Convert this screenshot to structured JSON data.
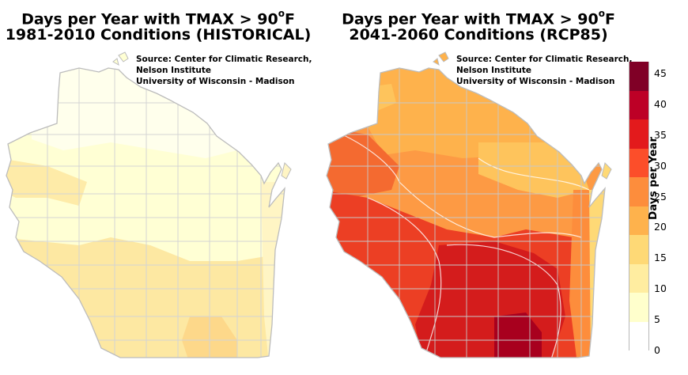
{
  "left_map": {
    "title_line1": "Days per Year with TMAX > 90",
    "title_deg": "o",
    "title_unit": "F",
    "title_line2": "1981-2010 Conditions (HISTORICAL)",
    "source": [
      "Source:  Center for Climatic Research,",
      "Nelson Institute",
      "University of Wisconsin - Madison"
    ]
  },
  "right_map": {
    "title_line1": "Days per Year with TMAX > 90",
    "title_deg": "o",
    "title_unit": "F",
    "title_line2": "2041-2060 Conditions (RCP85)",
    "source": [
      "Source:  Center for Climatic Research,",
      "Nelson Institute",
      "University of Wisconsin - Madison"
    ]
  },
  "legend": {
    "title": "Days per Year",
    "ticks": [
      "45",
      "40",
      "35",
      "30",
      "25",
      "20",
      "15",
      "10",
      "5",
      "0"
    ],
    "colors": [
      "#ffffff",
      "#ffffcc",
      "#ffeda0",
      "#fed976",
      "#feb24c",
      "#fd8d3c",
      "#fc4e2a",
      "#e31a1c",
      "#bd0026",
      "#800026"
    ]
  }
}
